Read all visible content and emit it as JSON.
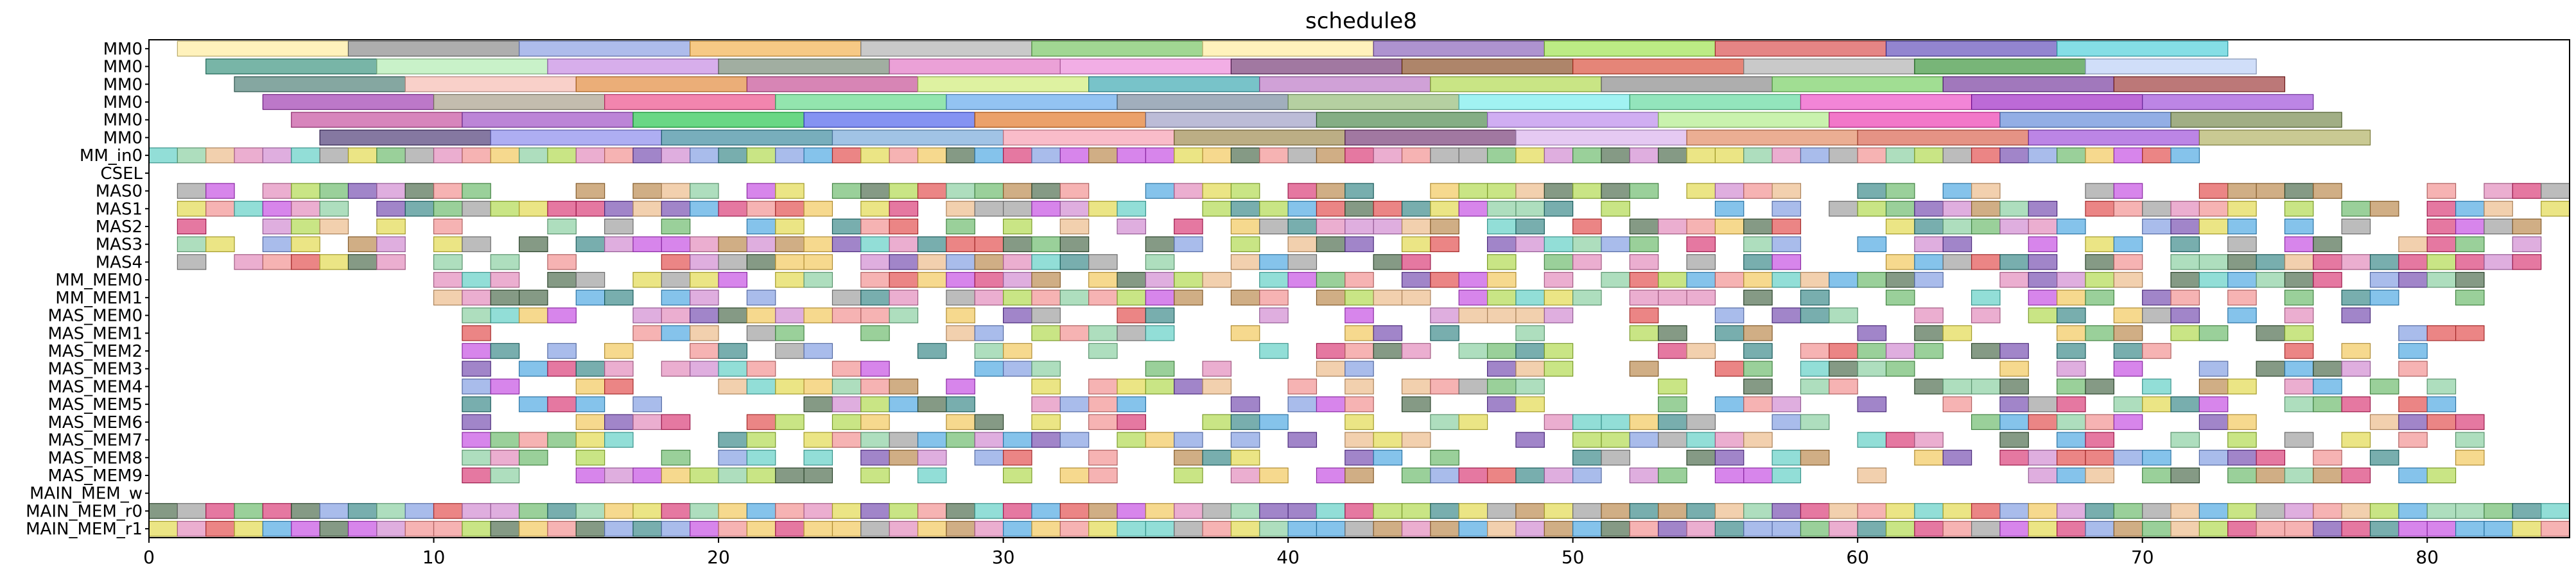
{
  "chart_data": {
    "type": "gantt",
    "title": "schedule8",
    "xlabel": "",
    "ylabel": "",
    "xlim": [
      0,
      85
    ],
    "x_ticks": [
      0,
      10,
      20,
      30,
      40,
      50,
      60,
      70,
      80
    ],
    "grid": false,
    "legend": "none",
    "rows": [
      "MM0",
      "MM0",
      "MM0",
      "MM0",
      "MM0",
      "MM0",
      "MM_in0",
      "CSEL",
      "MAS0",
      "MAS1",
      "MAS2",
      "MAS3",
      "MAS4",
      "MM_MEM0",
      "MM_MEM1",
      "MAS_MEM0",
      "MAS_MEM1",
      "MAS_MEM2",
      "MAS_MEM3",
      "MAS_MEM4",
      "MAS_MEM5",
      "MAS_MEM6",
      "MAS_MEM7",
      "MAS_MEM8",
      "MAS_MEM9",
      "MAIN_MEM_w",
      "MAIN_MEM_r0",
      "MAIN_MEM_r1"
    ],
    "palette": [
      "#f4a6a6",
      "#a0d8b3",
      "#f5d27a",
      "#9ab0e8",
      "#d9a0d9",
      "#7fd8d0",
      "#c8a070",
      "#b0b0b0",
      "#e87070",
      "#88c888",
      "#d070e8",
      "#70b8e8",
      "#e8e070",
      "#708870",
      "#e8a0c8",
      "#9070c0",
      "#f0c8a0",
      "#60a0a0",
      "#c0e070",
      "#e06090"
    ],
    "tasks": [
      {
        "row": 0,
        "start": 1,
        "end": 7,
        "color": "#fff0b0"
      },
      {
        "row": 0,
        "start": 7,
        "end": 13,
        "color": "#a0a0a0"
      },
      {
        "row": 0,
        "start": 13,
        "end": 19,
        "color": "#a0b0e8"
      },
      {
        "row": 0,
        "start": 19,
        "end": 25,
        "color": "#f5c070"
      },
      {
        "row": 0,
        "start": 25,
        "end": 31,
        "color": "#c0c0c0"
      },
      {
        "row": 0,
        "start": 31,
        "end": 37,
        "color": "#90d080"
      },
      {
        "row": 0,
        "start": 37,
        "end": 43,
        "color": "#fff0b0"
      },
      {
        "row": 0,
        "start": 43,
        "end": 49,
        "color": "#a080c8"
      },
      {
        "row": 0,
        "start": 49,
        "end": 55,
        "color": "#b0e870"
      },
      {
        "row": 0,
        "start": 55,
        "end": 61,
        "color": "#e07070"
      },
      {
        "row": 0,
        "start": 61,
        "end": 67,
        "color": "#8070c8"
      },
      {
        "row": 0,
        "start": 67,
        "end": 73,
        "color": "#70d8e0"
      },
      {
        "row": 1,
        "start": 2,
        "end": 8,
        "color": "#60a898"
      },
      {
        "row": 1,
        "start": 8,
        "end": 14,
        "color": "#c0f0c0"
      },
      {
        "row": 1,
        "start": 14,
        "end": 20,
        "color": "#d0a0e8"
      },
      {
        "row": 1,
        "start": 20,
        "end": 26,
        "color": "#90a090"
      },
      {
        "row": 1,
        "start": 26,
        "end": 32,
        "color": "#e890d0"
      },
      {
        "row": 1,
        "start": 32,
        "end": 38,
        "color": "#f0a0e0"
      },
      {
        "row": 1,
        "start": 38,
        "end": 44,
        "color": "#906090"
      },
      {
        "row": 1,
        "start": 44,
        "end": 50,
        "color": "#a07050"
      },
      {
        "row": 1,
        "start": 50,
        "end": 56,
        "color": "#e07060"
      },
      {
        "row": 1,
        "start": 56,
        "end": 62,
        "color": "#c0c0c0"
      },
      {
        "row": 1,
        "start": 62,
        "end": 68,
        "color": "#60a860"
      },
      {
        "row": 1,
        "start": 68,
        "end": 74,
        "color": "#c8d8f8"
      },
      {
        "row": 2,
        "start": 3,
        "end": 9,
        "color": "#709890"
      },
      {
        "row": 2,
        "start": 9,
        "end": 15,
        "color": "#f8c8c0"
      },
      {
        "row": 2,
        "start": 15,
        "end": 21,
        "color": "#e8a060"
      },
      {
        "row": 2,
        "start": 21,
        "end": 27,
        "color": "#d070a8"
      },
      {
        "row": 2,
        "start": 27,
        "end": 33,
        "color": "#d8f090"
      },
      {
        "row": 2,
        "start": 33,
        "end": 39,
        "color": "#60b8c0"
      },
      {
        "row": 2,
        "start": 39,
        "end": 45,
        "color": "#c890d0"
      },
      {
        "row": 2,
        "start": 45,
        "end": 51,
        "color": "#c0e070"
      },
      {
        "row": 2,
        "start": 51,
        "end": 57,
        "color": "#a0a0a0"
      },
      {
        "row": 2,
        "start": 57,
        "end": 63,
        "color": "#90d880"
      },
      {
        "row": 2,
        "start": 63,
        "end": 69,
        "color": "#9060b0"
      },
      {
        "row": 2,
        "start": 69,
        "end": 75,
        "color": "#b06060"
      },
      {
        "row": 3,
        "start": 4,
        "end": 10,
        "color": "#b060c0"
      },
      {
        "row": 3,
        "start": 10,
        "end": 16,
        "color": "#b8b0a0"
      },
      {
        "row": 3,
        "start": 16,
        "end": 22,
        "color": "#f070a0"
      },
      {
        "row": 3,
        "start": 22,
        "end": 28,
        "color": "#80e0a0"
      },
      {
        "row": 3,
        "start": 28,
        "end": 34,
        "color": "#80b8f0"
      },
      {
        "row": 3,
        "start": 34,
        "end": 40,
        "color": "#90a0b0"
      },
      {
        "row": 3,
        "start": 40,
        "end": 46,
        "color": "#a8c890"
      },
      {
        "row": 3,
        "start": 46,
        "end": 52,
        "color": "#90f0f0"
      },
      {
        "row": 3,
        "start": 52,
        "end": 58,
        "color": "#80e0b0"
      },
      {
        "row": 3,
        "start": 58,
        "end": 64,
        "color": "#f070d0"
      },
      {
        "row": 3,
        "start": 64,
        "end": 70,
        "color": "#b050d0"
      },
      {
        "row": 3,
        "start": 70,
        "end": 76,
        "color": "#b070e0"
      },
      {
        "row": 4,
        "start": 5,
        "end": 11,
        "color": "#d070b0"
      },
      {
        "row": 4,
        "start": 11,
        "end": 17,
        "color": "#b070d0"
      },
      {
        "row": 4,
        "start": 17,
        "end": 23,
        "color": "#50d070"
      },
      {
        "row": 4,
        "start": 23,
        "end": 29,
        "color": "#7080f0"
      },
      {
        "row": 4,
        "start": 29,
        "end": 35,
        "color": "#e89050"
      },
      {
        "row": 4,
        "start": 35,
        "end": 41,
        "color": "#b0b0d0"
      },
      {
        "row": 4,
        "start": 41,
        "end": 47,
        "color": "#70a070"
      },
      {
        "row": 4,
        "start": 47,
        "end": 53,
        "color": "#c8a0f0"
      },
      {
        "row": 4,
        "start": 53,
        "end": 59,
        "color": "#c0f0a0"
      },
      {
        "row": 4,
        "start": 59,
        "end": 65,
        "color": "#f060c0"
      },
      {
        "row": 4,
        "start": 65,
        "end": 71,
        "color": "#80a0e0"
      },
      {
        "row": 4,
        "start": 71,
        "end": 77,
        "color": "#90a070"
      },
      {
        "row": 5,
        "start": 6,
        "end": 12,
        "color": "#706090"
      },
      {
        "row": 5,
        "start": 12,
        "end": 18,
        "color": "#a0a0f0"
      },
      {
        "row": 5,
        "start": 18,
        "end": 24,
        "color": "#60a0b0"
      },
      {
        "row": 5,
        "start": 24,
        "end": 30,
        "color": "#90b8e0"
      },
      {
        "row": 5,
        "start": 30,
        "end": 36,
        "color": "#f8b0c0"
      },
      {
        "row": 5,
        "start": 36,
        "end": 42,
        "color": "#b0a070"
      },
      {
        "row": 5,
        "start": 42,
        "end": 48,
        "color": "#906090"
      },
      {
        "row": 5,
        "start": 48,
        "end": 54,
        "color": "#e0c0f0"
      },
      {
        "row": 5,
        "start": 54,
        "end": 60,
        "color": "#e8a080"
      },
      {
        "row": 5,
        "start": 60,
        "end": 66,
        "color": "#e08070"
      },
      {
        "row": 5,
        "start": 66,
        "end": 72,
        "color": "#b070e0"
      },
      {
        "row": 5,
        "start": 72,
        "end": 78,
        "color": "#c0c080"
      }
    ],
    "dense_rows": [
      {
        "row": 6,
        "from": 0,
        "to": 72,
        "density": 1.0,
        "seed": 11
      },
      {
        "row": 8,
        "from": 1,
        "to": 85,
        "density": 0.62,
        "seed": 23
      },
      {
        "row": 9,
        "from": 1,
        "to": 85,
        "density": 0.72,
        "seed": 37
      },
      {
        "row": 10,
        "from": 1,
        "to": 84,
        "density": 0.64,
        "seed": 41
      },
      {
        "row": 11,
        "from": 1,
        "to": 84,
        "density": 0.6,
        "seed": 53
      },
      {
        "row": 12,
        "from": 1,
        "to": 84,
        "density": 0.66,
        "seed": 67
      },
      {
        "row": 13,
        "from": 10,
        "to": 82,
        "density": 0.8,
        "seed": 71
      },
      {
        "row": 14,
        "from": 10,
        "to": 82,
        "density": 0.72,
        "seed": 83
      },
      {
        "row": 15,
        "from": 11,
        "to": 82,
        "density": 0.62,
        "seed": 97
      },
      {
        "row": 16,
        "from": 11,
        "to": 82,
        "density": 0.5,
        "seed": 101
      },
      {
        "row": 17,
        "from": 11,
        "to": 82,
        "density": 0.55,
        "seed": 113
      },
      {
        "row": 18,
        "from": 11,
        "to": 82,
        "density": 0.45,
        "seed": 127
      },
      {
        "row": 19,
        "from": 11,
        "to": 82,
        "density": 0.55,
        "seed": 131
      },
      {
        "row": 20,
        "from": 11,
        "to": 82,
        "density": 0.55,
        "seed": 139
      },
      {
        "row": 21,
        "from": 11,
        "to": 82,
        "density": 0.5,
        "seed": 149
      },
      {
        "row": 22,
        "from": 11,
        "to": 82,
        "density": 0.62,
        "seed": 157
      },
      {
        "row": 23,
        "from": 11,
        "to": 82,
        "density": 0.55,
        "seed": 163
      },
      {
        "row": 24,
        "from": 11,
        "to": 82,
        "density": 0.62,
        "seed": 173
      },
      {
        "row": 26,
        "from": 0,
        "to": 85,
        "density": 1.0,
        "seed": 181
      },
      {
        "row": 27,
        "from": 0,
        "to": 85,
        "density": 1.0,
        "seed": 191
      }
    ]
  }
}
